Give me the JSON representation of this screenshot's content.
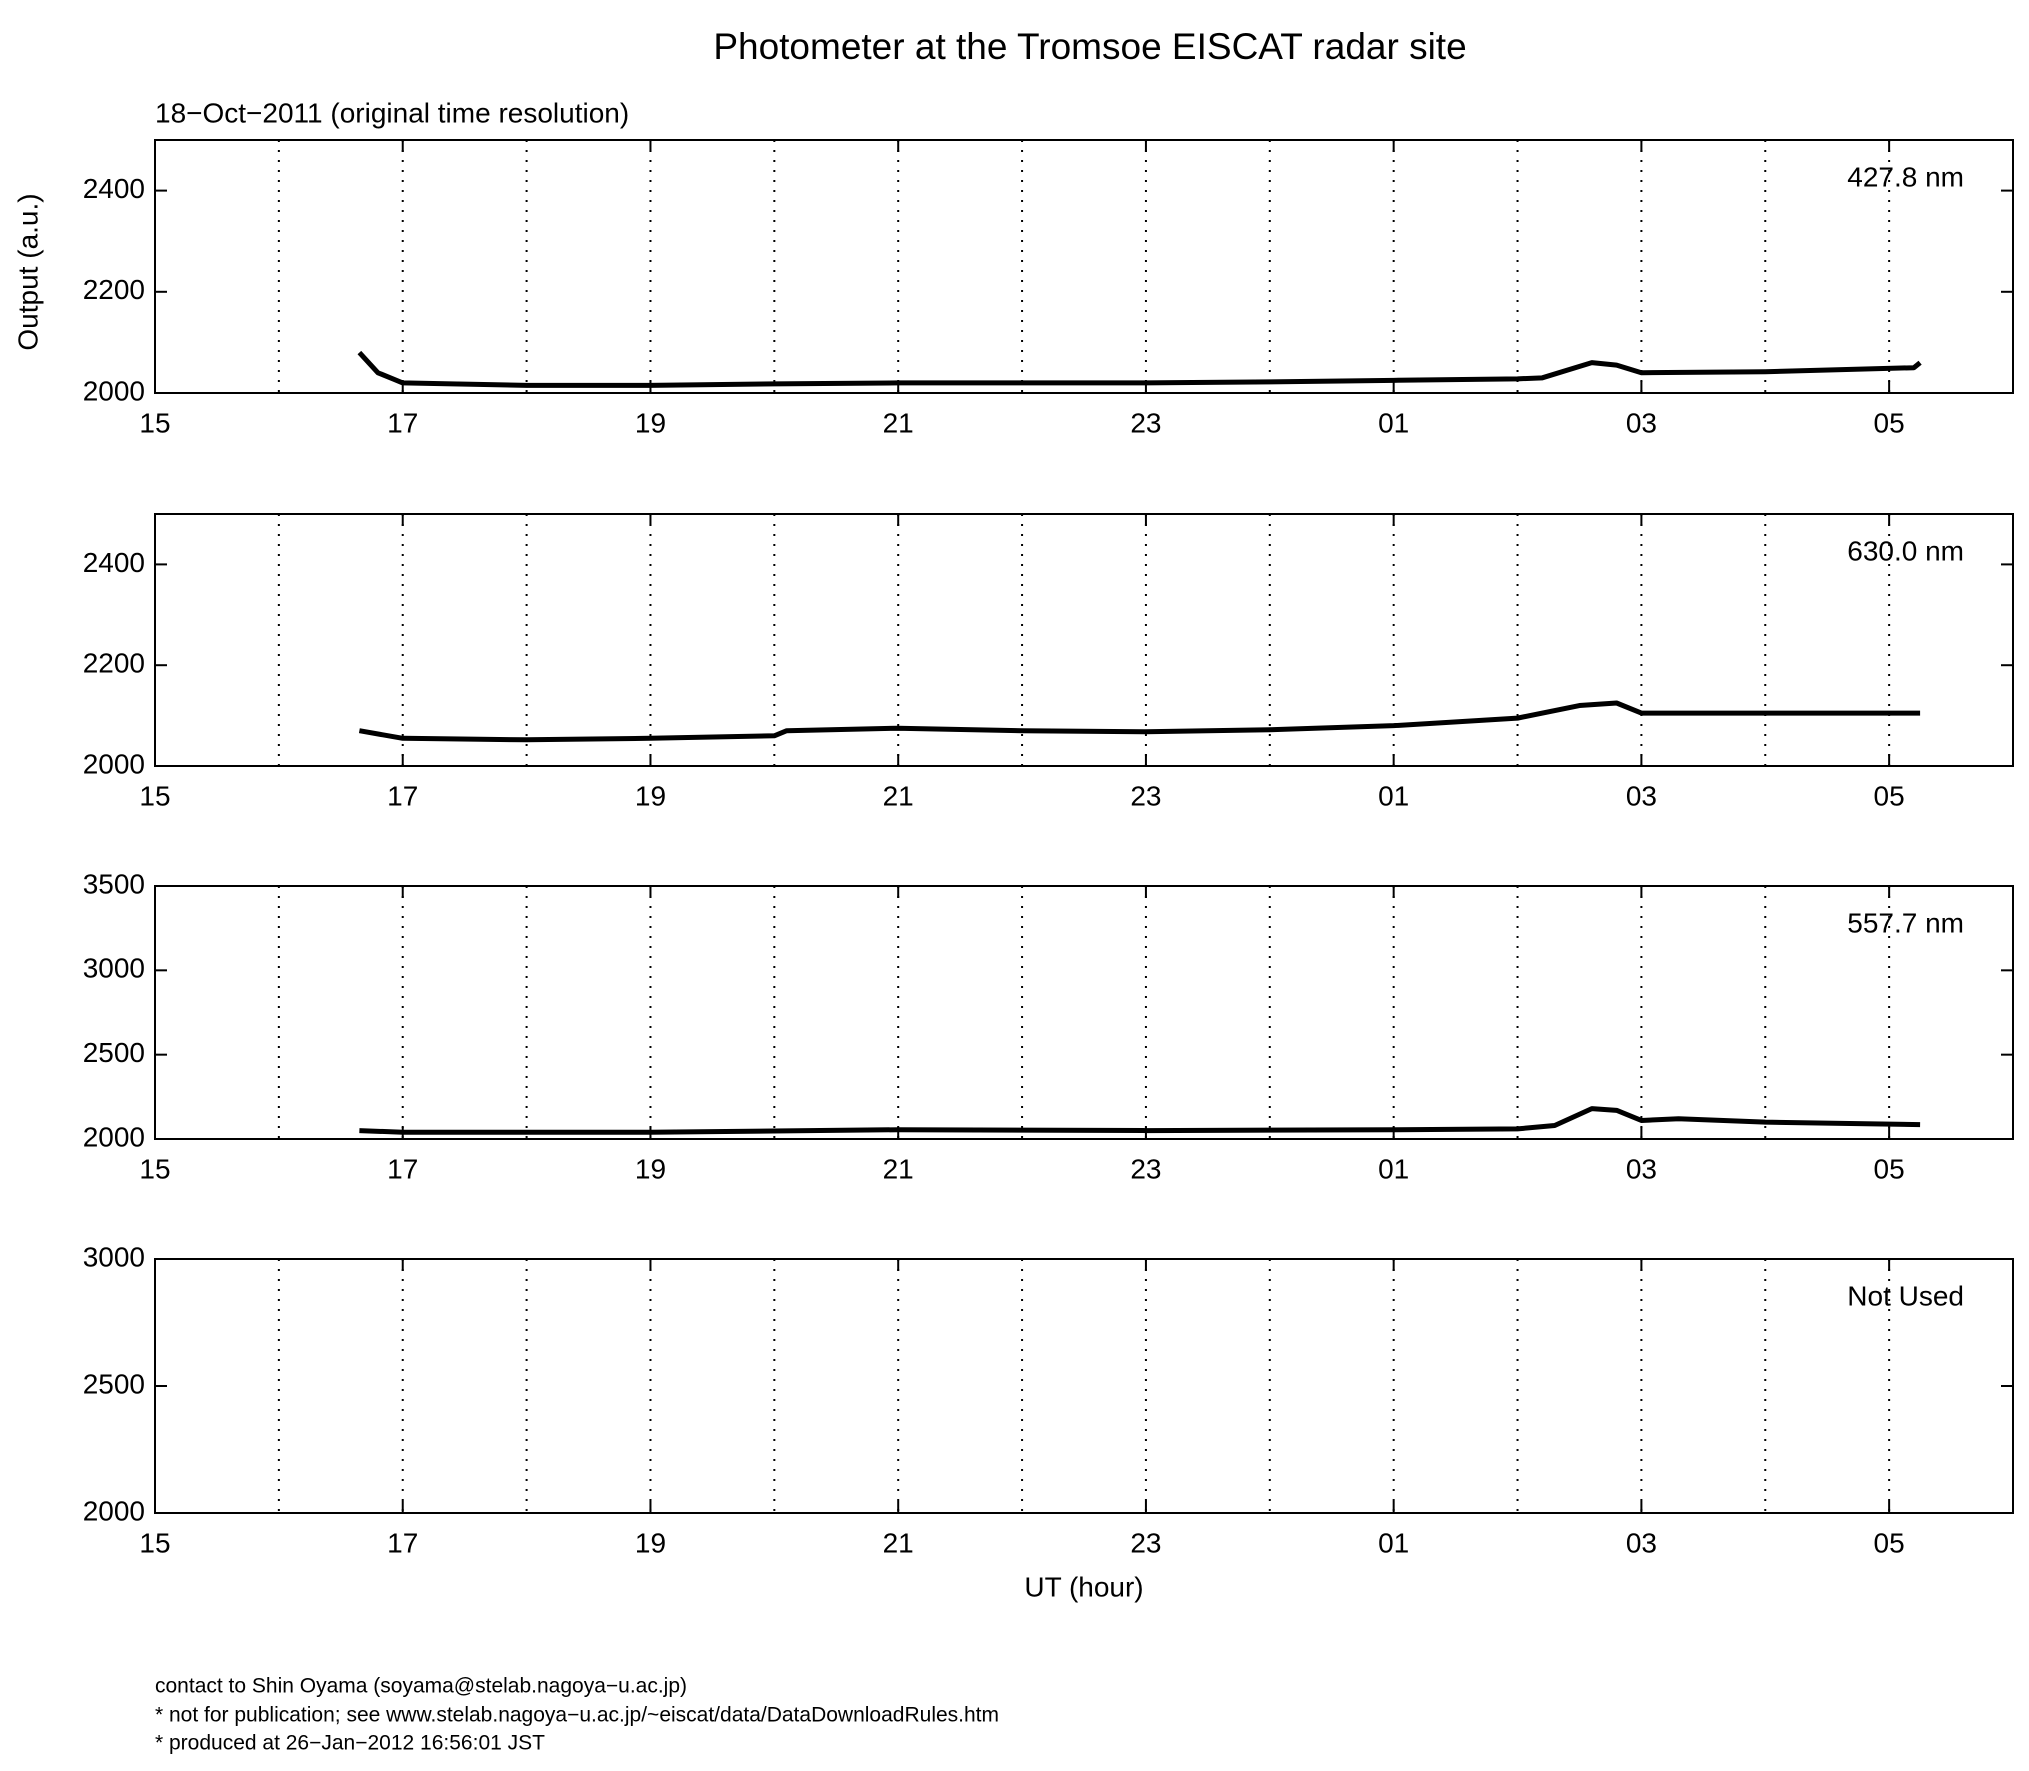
{
  "title": "Photometer at the Tromsoe EISCAT radar site",
  "subtitle": "18−Oct−2011 (original time resolution)",
  "footer": [
    "contact to Shin Oyama (soyama@stelab.nagoya−u.ac.jp)",
    "* not for publication; see www.stelab.nagoya−u.ac.jp/~eiscat/data/DataDownloadRules.htm",
    "* produced at 26−Jan−2012 16:56:01 JST"
  ],
  "chart_data": [
    {
      "type": "line",
      "ylabel": "Output (a.u.)",
      "label": "427.8 nm",
      "color": "#000000",
      "x": [
        16.65,
        16.8,
        17,
        18,
        19,
        20,
        21,
        22,
        23,
        24,
        25,
        26,
        26.2,
        26.6,
        26.8,
        27,
        28,
        29.2,
        29.25
      ],
      "values": [
        2080,
        2040,
        2020,
        2015,
        2015,
        2018,
        2020,
        2020,
        2020,
        2022,
        2025,
        2028,
        2030,
        2060,
        2055,
        2040,
        2042,
        2050,
        2060
      ],
      "xlim": [
        15,
        30
      ],
      "xticks": [
        15,
        17,
        19,
        21,
        23,
        {
          "value": 25,
          "label": "01"
        },
        {
          "value": 27,
          "label": "03"
        },
        {
          "value": 29,
          "label": "05"
        }
      ],
      "xgrid": [
        16,
        17,
        18,
        19,
        20,
        21,
        22,
        23,
        24,
        25,
        26,
        27,
        28,
        29
      ],
      "ylim": [
        2000,
        2500
      ],
      "yticks": [
        2000,
        2200,
        2400
      ]
    },
    {
      "type": "line",
      "label": "630.0 nm",
      "color": "#000000",
      "x": [
        16.65,
        17,
        18,
        19,
        20,
        20.1,
        21,
        22,
        23,
        24,
        25,
        26,
        26.5,
        26.8,
        27,
        28,
        29.25
      ],
      "values": [
        2070,
        2055,
        2052,
        2055,
        2060,
        2070,
        2075,
        2070,
        2068,
        2072,
        2080,
        2095,
        2120,
        2125,
        2105,
        2105,
        2105
      ],
      "xlim": [
        15,
        30
      ],
      "xticks": [
        15,
        17,
        19,
        21,
        23,
        {
          "value": 25,
          "label": "01"
        },
        {
          "value": 27,
          "label": "03"
        },
        {
          "value": 29,
          "label": "05"
        }
      ],
      "xgrid": [
        16,
        17,
        18,
        19,
        20,
        21,
        22,
        23,
        24,
        25,
        26,
        27,
        28,
        29
      ],
      "ylim": [
        2000,
        2500
      ],
      "yticks": [
        2000,
        2200,
        2400
      ]
    },
    {
      "type": "line",
      "label": "557.7 nm",
      "color": "#000000",
      "x": [
        16.65,
        17,
        19,
        21,
        23,
        25,
        26,
        26.3,
        26.6,
        26.8,
        27,
        27.3,
        28,
        29.25
      ],
      "values": [
        2050,
        2040,
        2040,
        2055,
        2050,
        2055,
        2060,
        2080,
        2180,
        2170,
        2110,
        2120,
        2100,
        2085
      ],
      "xlim": [
        15,
        30
      ],
      "xticks": [
        15,
        17,
        19,
        21,
        23,
        {
          "value": 25,
          "label": "01"
        },
        {
          "value": 27,
          "label": "03"
        },
        {
          "value": 29,
          "label": "05"
        }
      ],
      "xgrid": [
        16,
        17,
        18,
        19,
        20,
        21,
        22,
        23,
        24,
        25,
        26,
        27,
        28,
        29
      ],
      "ylim": [
        2000,
        3500
      ],
      "yticks": [
        2000,
        2500,
        3000,
        3500
      ]
    },
    {
      "type": "line",
      "label": "Not Used",
      "xlabel": "UT (hour)",
      "color": "#000000",
      "x": [],
      "values": [],
      "xlim": [
        15,
        30
      ],
      "xticks": [
        15,
        17,
        19,
        21,
        23,
        {
          "value": 25,
          "label": "01"
        },
        {
          "value": 27,
          "label": "03"
        },
        {
          "value": 29,
          "label": "05"
        }
      ],
      "xgrid": [
        16,
        17,
        18,
        19,
        20,
        21,
        22,
        23,
        24,
        25,
        26,
        27,
        28,
        29
      ],
      "ylim": [
        2000,
        3000
      ],
      "yticks": [
        2000,
        2500,
        3000
      ]
    }
  ]
}
